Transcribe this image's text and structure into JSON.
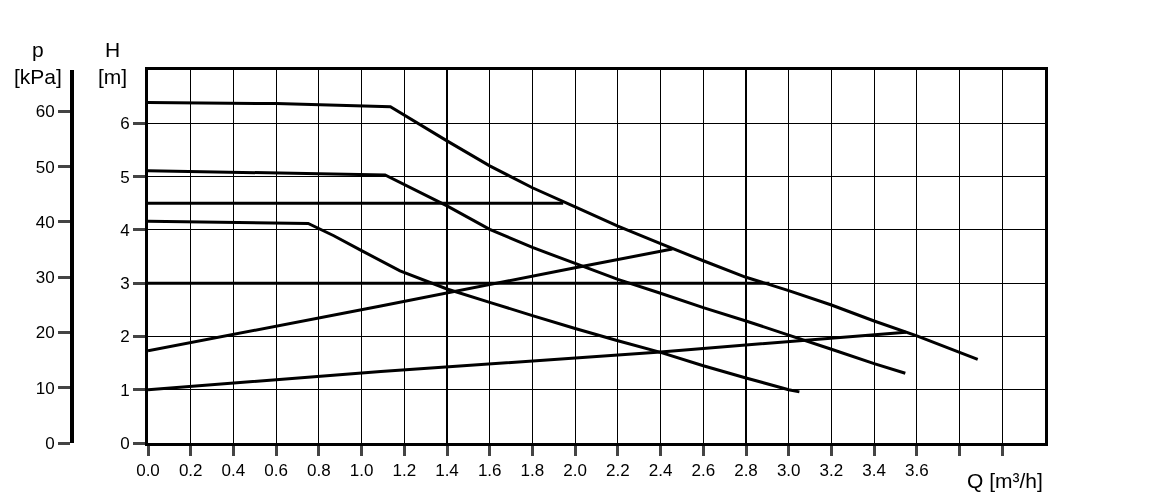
{
  "chart_data": {
    "type": "line",
    "xlabel": "Q [m³/h]",
    "ylabel": "H [m]",
    "y2label": "p [kPa]",
    "xlim": [
      0,
      4.2
    ],
    "xticks": [
      {
        "value": 0,
        "label": "0.0"
      },
      0.2,
      0.4,
      0.6,
      0.8,
      {
        "value": 1,
        "label": "1.0"
      },
      1.2,
      1.4,
      1.6,
      1.8,
      {
        "value": 2,
        "label": "2.0"
      },
      2.2,
      2.4,
      2.6,
      2.8,
      {
        "value": 3,
        "label": "3.0"
      },
      3.2,
      3.4,
      3.6,
      {
        "value": 3.8,
        "label": null
      },
      {
        "value": 4,
        "label": null
      }
    ],
    "ylim": [
      0,
      7
    ],
    "yticks": [
      0,
      1,
      2,
      3,
      4,
      5,
      6
    ],
    "y2lim": [
      0,
      67.5
    ],
    "y2ticks": [
      0,
      10,
      20,
      30,
      40,
      50,
      60
    ],
    "grid": true,
    "marker": "none",
    "line_style": "solid",
    "series": [
      {
        "color": "#000000",
        "x": [
          0,
          0.6,
          1.135,
          1.4,
          1.6,
          1.8,
          2.0,
          2.2,
          2.4,
          2.6,
          2.8,
          3.0,
          3.2,
          3.4,
          3.6,
          3.885
        ],
        "values": [
          6.39,
          6.37,
          6.31,
          5.67,
          5.2,
          4.79,
          4.43,
          4.07,
          3.74,
          3.42,
          3.11,
          2.86,
          2.59,
          2.29,
          2.01,
          1.57
        ]
      },
      {
        "color": "#000000",
        "x": [
          0,
          1.11,
          1.4,
          1.6,
          1.8,
          2.0,
          2.2,
          2.4,
          2.6,
          2.8,
          3.0,
          3.2,
          3.4,
          3.546
        ],
        "values": [
          5.11,
          5.03,
          4.45,
          4.01,
          3.67,
          3.37,
          3.07,
          2.81,
          2.54,
          2.29,
          2.025,
          1.76,
          1.49,
          1.31
        ]
      },
      {
        "color": "#000000",
        "x": [
          0,
          0.75,
          0.87,
          1.0,
          1.18,
          1.4,
          1.6,
          1.8,
          2.0,
          2.2,
          2.4,
          2.6,
          2.8,
          3.0,
          3.05
        ],
        "values": [
          4.16,
          4.12,
          3.89,
          3.61,
          3.23,
          2.89,
          2.64,
          2.39,
          2.15,
          1.92,
          1.7,
          1.45,
          1.22,
          1.0,
          0.96
        ]
      },
      {
        "color": "#000000",
        "x": [
          0,
          1.944
        ],
        "values": [
          4.5,
          4.5
        ]
      },
      {
        "color": "#000000",
        "x": [
          0,
          2.91
        ],
        "values": [
          3.0,
          3.0
        ]
      },
      {
        "color": "#000000",
        "x": [
          0,
          1.09,
          2.0,
          2.455
        ],
        "values": [
          1.73,
          2.57,
          3.29,
          3.64
        ]
      },
      {
        "color": "#000000",
        "x": [
          0,
          1.09,
          2.4,
          3.549
        ],
        "values": [
          1.0,
          1.34,
          1.71,
          2.08
        ]
      }
    ]
  }
}
